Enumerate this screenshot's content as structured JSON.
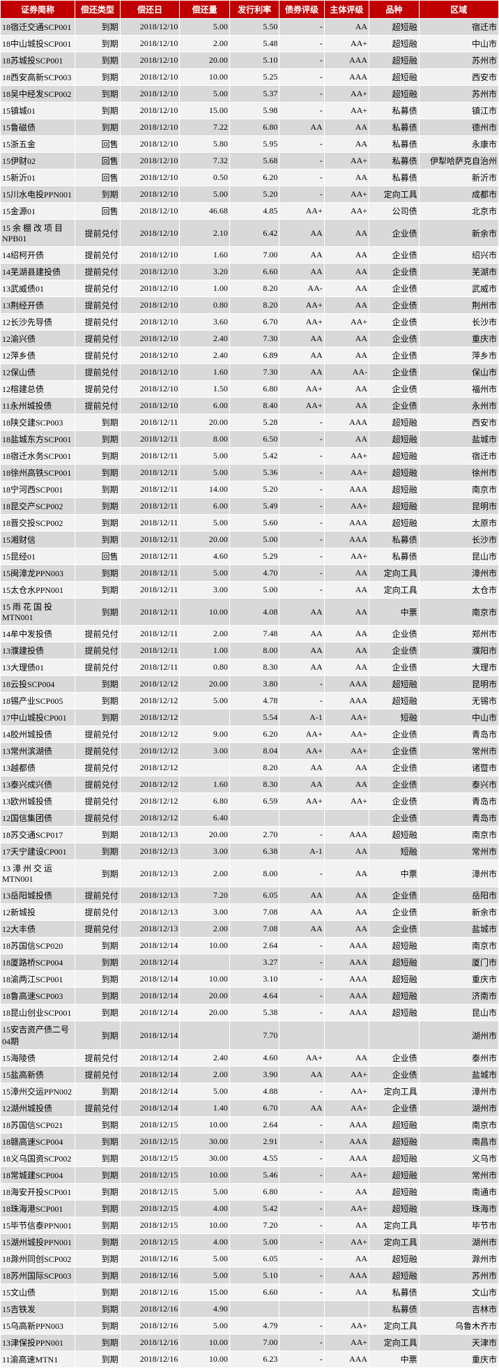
{
  "headers": [
    "证券简称",
    "偿还类型",
    "偿还日",
    "偿还量",
    "发行利率",
    "债券评级",
    "主体评级",
    "品种",
    "区域"
  ],
  "rows": [
    [
      "18宿迁交通SCP001",
      "到期",
      "2018/12/10",
      "5.00",
      "5.50",
      "-",
      "AA",
      "超短融",
      "宿迁市"
    ],
    [
      "18中山城投SCP001",
      "到期",
      "2018/12/10",
      "2.00",
      "5.48",
      "-",
      "AA+",
      "超短融",
      "中山市"
    ],
    [
      "18苏城投SCP001",
      "到期",
      "2018/12/10",
      "20.00",
      "5.10",
      "-",
      "AAA",
      "超短融",
      "苏州市"
    ],
    [
      "18西安高新SCP003",
      "到期",
      "2018/12/10",
      "10.00",
      "5.25",
      "-",
      "AAA",
      "超短融",
      "西安市"
    ],
    [
      "18吴中经发SCP002",
      "到期",
      "2018/12/10",
      "5.00",
      "5.37",
      "-",
      "AA+",
      "超短融",
      "苏州市"
    ],
    [
      "15镇城01",
      "到期",
      "2018/12/10",
      "15.00",
      "5.98",
      "-",
      "AA+",
      "私募债",
      "镇江市"
    ],
    [
      "15鲁磁债",
      "到期",
      "2018/12/10",
      "7.22",
      "6.80",
      "AA",
      "AA",
      "私募债",
      "德州市"
    ],
    [
      "15浙五金",
      "回售",
      "2018/12/10",
      "5.80",
      "5.95",
      "-",
      "AA",
      "私募债",
      "永康市"
    ],
    [
      "15伊财02",
      "回售",
      "2018/12/10",
      "7.32",
      "5.68",
      "-",
      "AA+",
      "私募债",
      "伊犁哈萨克自治州"
    ],
    [
      "15新沂01",
      "回售",
      "2018/12/10",
      "0.50",
      "6.20",
      "-",
      "AA",
      "私募债",
      "新沂市"
    ],
    [
      "15川水电投PPN001",
      "到期",
      "2018/12/10",
      "5.00",
      "5.20",
      "-",
      "AA+",
      "定向工具",
      "成都市"
    ],
    [
      "15金源01",
      "回售",
      "2018/12/10",
      "46.68",
      "4.85",
      "AA+",
      "AA+",
      "公司债",
      "北京市"
    ],
    [
      "15 余 棚 改 项 目NPB01",
      "提前兑付",
      "2018/12/10",
      "2.10",
      "6.42",
      "AA",
      "AA",
      "企业债",
      "新余市"
    ],
    [
      "14绍柯开债",
      "提前兑付",
      "2018/12/10",
      "1.60",
      "7.00",
      "AA",
      "AA",
      "企业债",
      "绍兴市"
    ],
    [
      "14芜湖县建投债",
      "提前兑付",
      "2018/12/10",
      "3.20",
      "6.60",
      "AA",
      "AA",
      "企业债",
      "芜湖市"
    ],
    [
      "13武威债01",
      "提前兑付",
      "2018/12/10",
      "1.00",
      "8.20",
      "AA-",
      "AA",
      "企业债",
      "武威市"
    ],
    [
      "13荆经开债",
      "提前兑付",
      "2018/12/10",
      "0.80",
      "8.20",
      "AA+",
      "AA",
      "企业债",
      "荆州市"
    ],
    [
      "12长沙先导债",
      "提前兑付",
      "2018/12/10",
      "3.60",
      "6.70",
      "AA+",
      "AA+",
      "企业债",
      "长沙市"
    ],
    [
      "12渝兴债",
      "提前兑付",
      "2018/12/10",
      "2.40",
      "7.30",
      "AA",
      "AA",
      "企业债",
      "重庆市"
    ],
    [
      "12萍乡债",
      "提前兑付",
      "2018/12/10",
      "2.40",
      "6.89",
      "AA",
      "AA",
      "企业债",
      "萍乡市"
    ],
    [
      "12保山债",
      "提前兑付",
      "2018/12/10",
      "1.60",
      "7.30",
      "AA",
      "AA-",
      "企业债",
      "保山市"
    ],
    [
      "12榕建总债",
      "提前兑付",
      "2018/12/10",
      "1.50",
      "6.80",
      "AA+",
      "AA",
      "企业债",
      "福州市"
    ],
    [
      "11永州城投债",
      "提前兑付",
      "2018/12/10",
      "6.00",
      "8.40",
      "AA+",
      "AA",
      "企业债",
      "永州市"
    ],
    [
      "18陕交建SCP003",
      "到期",
      "2018/12/11",
      "20.00",
      "5.28",
      "-",
      "AAA",
      "超短融",
      "西安市"
    ],
    [
      "18盐城东方SCP001",
      "到期",
      "2018/12/11",
      "8.00",
      "6.50",
      "-",
      "AA",
      "超短融",
      "盐城市"
    ],
    [
      "18宿迁水务SCP001",
      "到期",
      "2018/12/11",
      "5.00",
      "5.42",
      "-",
      "AA+",
      "超短融",
      "宿迁市"
    ],
    [
      "18徐州高铁SCP001",
      "到期",
      "2018/12/11",
      "5.00",
      "5.36",
      "-",
      "AA+",
      "超短融",
      "徐州市"
    ],
    [
      "18宁河西SCP001",
      "到期",
      "2018/12/11",
      "14.00",
      "5.20",
      "-",
      "AAA",
      "超短融",
      "南京市"
    ],
    [
      "18昆交产SCP002",
      "到期",
      "2018/12/11",
      "6.00",
      "5.49",
      "-",
      "AA+",
      "超短融",
      "昆明市"
    ],
    [
      "18晋交投SCP002",
      "到期",
      "2018/12/11",
      "5.00",
      "5.60",
      "-",
      "AAA",
      "超短融",
      "太原市"
    ],
    [
      "15湘财信",
      "到期",
      "2018/12/11",
      "20.00",
      "5.00",
      "-",
      "AAA",
      "私募债",
      "长沙市"
    ],
    [
      "15昆经01",
      "回售",
      "2018/12/11",
      "4.60",
      "5.29",
      "-",
      "AA+",
      "私募债",
      "昆山市"
    ],
    [
      "15闽漳龙PPN003",
      "到期",
      "2018/12/11",
      "5.00",
      "4.70",
      "-",
      "AA",
      "定向工具",
      "漳州市"
    ],
    [
      "15太仓水PPN001",
      "到期",
      "2018/12/11",
      "3.00",
      "5.00",
      "-",
      "AA",
      "定向工具",
      "太仓市"
    ],
    [
      "15 雨 花 国 投MTN001",
      "到期",
      "2018/12/11",
      "10.00",
      "4.08",
      "AA",
      "AA",
      "中票",
      "南京市"
    ],
    [
      "14牟中发投债",
      "提前兑付",
      "2018/12/11",
      "2.00",
      "7.48",
      "AA",
      "AA",
      "企业债",
      "郑州市"
    ],
    [
      "13濮建投债",
      "提前兑付",
      "2018/12/11",
      "1.00",
      "8.00",
      "AA",
      "AA",
      "企业债",
      "濮阳市"
    ],
    [
      "13大理债01",
      "提前兑付",
      "2018/12/11",
      "0.80",
      "8.30",
      "AA",
      "AA",
      "企业债",
      "大理市"
    ],
    [
      "18云投SCP004",
      "到期",
      "2018/12/12",
      "20.00",
      "3.80",
      "-",
      "AAA",
      "超短融",
      "昆明市"
    ],
    [
      "18锡产业SCP005",
      "到期",
      "2018/12/12",
      "5.00",
      "4.78",
      "-",
      "AAA",
      "超短融",
      "无锡市"
    ],
    [
      "17中山城投CP001",
      "到期",
      "2018/12/12",
      "",
      "5.54",
      "A-1",
      "AA+",
      "短融",
      "中山市"
    ],
    [
      "14胶州城投债",
      "提前兑付",
      "2018/12/12",
      "9.00",
      "6.20",
      "AA+",
      "AA+",
      "企业债",
      "青岛市"
    ],
    [
      "13常州滨湖债",
      "提前兑付",
      "2018/12/12",
      "3.00",
      "8.04",
      "AA+",
      "AA+",
      "企业债",
      "常州市"
    ],
    [
      "13越都债",
      "提前兑付",
      "2018/12/12",
      "",
      "8.20",
      "AA",
      "AA",
      "企业债",
      "诸暨市"
    ],
    [
      "13泰兴成兴债",
      "提前兑付",
      "2018/12/12",
      "1.60",
      "8.30",
      "AA",
      "AA",
      "企业债",
      "泰兴市"
    ],
    [
      "13欧州城投债",
      "提前兑付",
      "2018/12/12",
      "6.80",
      "6.59",
      "AA+",
      "AA+",
      "企业债",
      "青岛市"
    ],
    [
      "12国信集团债",
      "提前兑付",
      "2018/12/12",
      "6.40",
      "",
      "",
      "",
      "企业债",
      "青岛市"
    ],
    [
      "18苏交通SCP017",
      "到期",
      "2018/12/13",
      "20.00",
      "2.70",
      "-",
      "AAA",
      "超短融",
      "南京市"
    ],
    [
      "17天宁建设CP001",
      "到期",
      "2018/12/13",
      "3.00",
      "6.38",
      "A-1",
      "AA",
      "短融",
      "常州市"
    ],
    [
      "13 漳 州 交 运MTN001",
      "到期",
      "2018/12/13",
      "2.00",
      "8.00",
      "-",
      "AA",
      "中票",
      "漳州市"
    ],
    [
      "13岳阳城投债",
      "提前兑付",
      "2018/12/13",
      "7.20",
      "6.05",
      "AA",
      "AA",
      "企业债",
      "岳阳市"
    ],
    [
      "12新城投",
      "提前兑付",
      "2018/12/13",
      "3.00",
      "7.08",
      "AA",
      "AA",
      "企业债",
      "新余市"
    ],
    [
      "12大丰债",
      "提前兑付",
      "2018/12/13",
      "2.00",
      "7.08",
      "AA",
      "AA",
      "企业债",
      "盐城市"
    ],
    [
      "18苏国信SCP020",
      "到期",
      "2018/12/14",
      "10.00",
      "2.64",
      "-",
      "AAA",
      "超短融",
      "南京市"
    ],
    [
      "18厦路桥SCP004",
      "到期",
      "2018/12/14",
      "",
      "3.27",
      "-",
      "AAA",
      "超短融",
      "厦门市"
    ],
    [
      "18渝两江SCP001",
      "到期",
      "2018/12/14",
      "10.00",
      "3.10",
      "-",
      "AAA",
      "超短融",
      "重庆市"
    ],
    [
      "18鲁高速SCP003",
      "到期",
      "2018/12/14",
      "20.00",
      "4.64",
      "-",
      "AAA",
      "超短融",
      "济南市"
    ],
    [
      "18昆山创业SCP001",
      "到期",
      "2018/12/14",
      "20.00",
      "5.38",
      "-",
      "AAA",
      "超短融",
      "昆山市"
    ],
    [
      "15安吉资产债二号04期",
      "到期",
      "2018/12/14",
      "",
      "7.70",
      "",
      "",
      "",
      "湖州市"
    ],
    [
      "15海陵债",
      "提前兑付",
      "2018/12/14",
      "2.40",
      "4.60",
      "AA+",
      "AA",
      "企业债",
      "泰州市"
    ],
    [
      "15盐高新债",
      "提前兑付",
      "2018/12/14",
      "2.00",
      "3.90",
      "AA",
      "AA+",
      "企业债",
      "盐城市"
    ],
    [
      "15漳州交运PPN002",
      "到期",
      "2018/12/14",
      "5.00",
      "4.88",
      "-",
      "AA+",
      "定向工具",
      "漳州市"
    ],
    [
      "12湖州城投债",
      "提前兑付",
      "2018/12/14",
      "1.40",
      "6.70",
      "AA",
      "AA+",
      "企业债",
      "湖州市"
    ],
    [
      "18苏国信SCP021",
      "到期",
      "2018/12/15",
      "10.00",
      "2.64",
      "-",
      "AAA",
      "超短融",
      "南京市"
    ],
    [
      "18赣高速SCP004",
      "到期",
      "2018/12/15",
      "30.00",
      "2.91",
      "-",
      "AAA",
      "超短融",
      "南昌市"
    ],
    [
      "18义乌国资SCP002",
      "到期",
      "2018/12/15",
      "30.00",
      "4.55",
      "-",
      "AAA",
      "超短融",
      "义乌市"
    ],
    [
      "18常城建SCP004",
      "到期",
      "2018/12/15",
      "10.00",
      "5.46",
      "-",
      "AA+",
      "超短融",
      "常州市"
    ],
    [
      "18海安开投SCP001",
      "到期",
      "2018/12/15",
      "5.00",
      "6.80",
      "-",
      "AA",
      "超短融",
      "南通市"
    ],
    [
      "18珠海港SCP001",
      "到期",
      "2018/12/15",
      "4.00",
      "5.42",
      "-",
      "AA+",
      "超短融",
      "珠海市"
    ],
    [
      "15毕节信泰PPN001",
      "到期",
      "2018/12/15",
      "10.00",
      "7.20",
      "-",
      "AA",
      "定向工具",
      "毕节市"
    ],
    [
      "15湖州城投PPN001",
      "到期",
      "2018/12/15",
      "4.00",
      "5.00",
      "-",
      "AA+",
      "定向工具",
      "湖州市"
    ],
    [
      "18滁州同创SCP002",
      "到期",
      "2018/12/16",
      "5.00",
      "6.05",
      "-",
      "AA",
      "超短融",
      "滁州市"
    ],
    [
      "18苏州国际SCP003",
      "到期",
      "2018/12/16",
      "5.00",
      "5.10",
      "-",
      "AAA",
      "超短融",
      "苏州市"
    ],
    [
      "15文山债",
      "到期",
      "2018/12/16",
      "15.00",
      "6.60",
      "-",
      "AA",
      "私募债",
      "文山市"
    ],
    [
      "15吉铁发",
      "到期",
      "2018/12/16",
      "4.90",
      "",
      "",
      "",
      "私募债",
      "吉林市"
    ],
    [
      "15乌高新PPN003",
      "到期",
      "2018/12/16",
      "5.00",
      "4.79",
      "-",
      "AA+",
      "定向工具",
      "乌鲁木齐市"
    ],
    [
      "13津保投PPN001",
      "到期",
      "2018/12/16",
      "10.00",
      "7.00",
      "-",
      "AA+",
      "定向工具",
      "天津市"
    ],
    [
      "11渝高速MTN1",
      "到期",
      "2018/12/16",
      "10.00",
      "6.23",
      "-",
      "AAA",
      "中票",
      "重庆市"
    ]
  ]
}
